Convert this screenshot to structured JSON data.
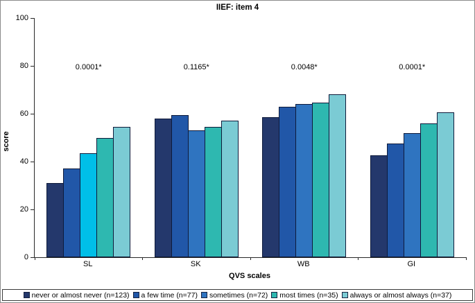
{
  "chart_data": {
    "type": "bar",
    "title": "IIEF: item 4",
    "xlabel": "QVS scales",
    "ylabel": "score",
    "ylim": [
      0,
      100
    ],
    "yticks": [
      0,
      20,
      40,
      60,
      80,
      100
    ],
    "grid": false,
    "legend_position": "bottom",
    "categories": [
      "SL",
      "SK",
      "WB",
      "GI"
    ],
    "series": [
      {
        "name": "never or almost never (n=123)",
        "color": "#24386c",
        "values": [
          31,
          58,
          58.5,
          42.5
        ]
      },
      {
        "name": "a few time (n=77)",
        "color": "#2157a8",
        "values": [
          37,
          59.5,
          63,
          47.5
        ]
      },
      {
        "name": "sometimes (n=72)",
        "color": "#2f74c0",
        "values": [
          43.5,
          53,
          64,
          52
        ]
      },
      {
        "name": "most times (n=35)",
        "color": "#2eb8b0",
        "values": [
          50,
          54.5,
          64.5,
          56
        ]
      },
      {
        "name": "always or almost always (n=37)",
        "color": "#7bcbd4",
        "values": [
          54.5,
          57,
          68,
          60.5
        ]
      }
    ],
    "color_overrides": [
      {
        "category": "SL",
        "series_index": 2,
        "color": "#00bfe8"
      }
    ],
    "annotations": [
      {
        "category": "SL",
        "text": "0.0001*",
        "y": 80
      },
      {
        "category": "SK",
        "text": "0.1165*",
        "y": 80
      },
      {
        "category": "WB",
        "text": "0.0048*",
        "y": 80
      },
      {
        "category": "GI",
        "text": "0.0001*",
        "y": 80
      }
    ],
    "bar_border_color": "#0e1a3a",
    "axis_color": "#262626"
  }
}
